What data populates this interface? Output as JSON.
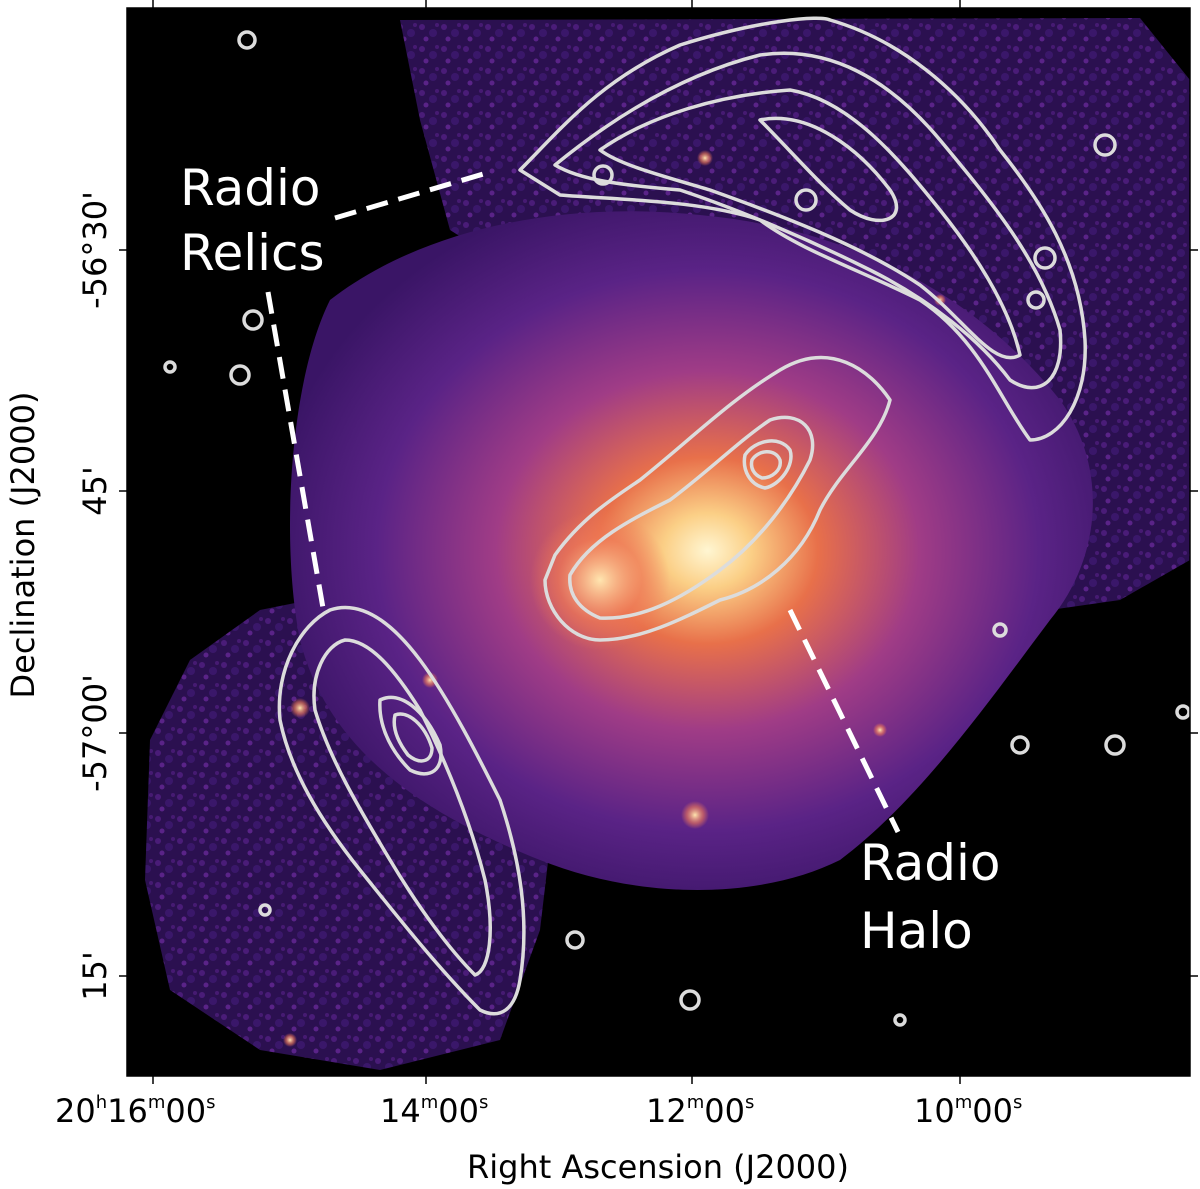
{
  "figure": {
    "xaxis_title": "Right Ascension (J2000)",
    "yaxis_title": "Declination (J2000)",
    "x_ticks": [
      {
        "h": "20",
        "m": "16",
        "s": "00",
        "prefix": "20h16m00s"
      },
      {
        "h": "",
        "m": "14",
        "s": "00",
        "prefix": "14m00s"
      },
      {
        "h": "",
        "m": "12",
        "s": "00",
        "prefix": "12m00s"
      },
      {
        "h": "",
        "m": "10",
        "s": "00",
        "prefix": "10m00s"
      }
    ],
    "y_ticks": [
      {
        "label": "-56°30'"
      },
      {
        "label": "45'"
      },
      {
        "label": "-57°00'"
      },
      {
        "label": "15'"
      }
    ],
    "annotations": {
      "relics_line1": "Radio",
      "relics_line2": "Relics",
      "halo_line1": "Radio",
      "halo_line2": "Halo"
    }
  },
  "colors": {
    "background": "#000000",
    "contour": "#dcdcdc",
    "core": "#fff2c8",
    "mid": "#e8704a",
    "outer": "#6a2a8a",
    "faint": "#2a0f44"
  }
}
